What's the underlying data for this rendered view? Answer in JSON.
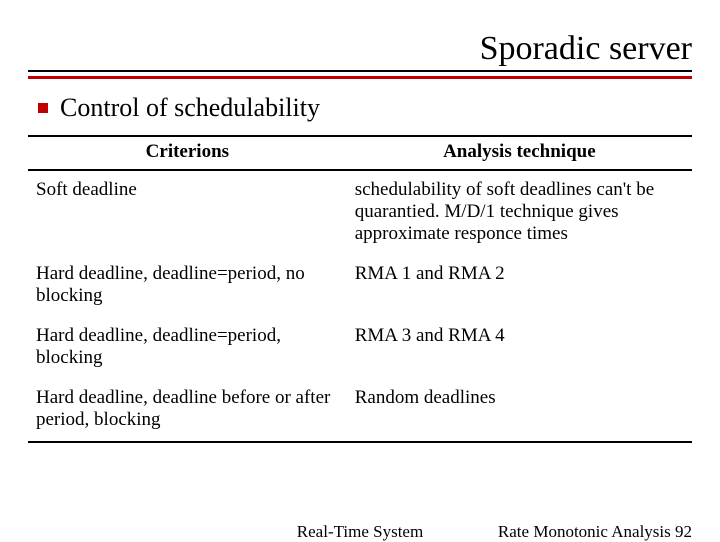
{
  "title": "Sporadic server",
  "bullet": "Control of schedulability",
  "table": {
    "headers": [
      "Criterions",
      "Analysis technique"
    ],
    "rows": [
      [
        "Soft deadline",
        "schedulability of soft deadlines can't be quarantied. M/D/1 technique gives approximate responce times"
      ],
      [
        "Hard deadline, deadline=period, no blocking",
        "RMA 1 and RMA 2"
      ],
      [
        "Hard deadline, deadline=period, blocking",
        "RMA 3 and RMA 4"
      ],
      [
        "Hard deadline, deadline before or after period, blocking",
        "Random deadlines"
      ]
    ]
  },
  "footer": {
    "center": "Real-Time System",
    "right_label": "Rate Monotonic Analysis",
    "page": "92"
  },
  "colors": {
    "accent": "#c00000",
    "text": "#000000",
    "background": "#ffffff"
  },
  "typography": {
    "title_fontsize": 34,
    "bullet_fontsize": 26,
    "table_fontsize": 19,
    "footer_fontsize": 17,
    "font_family": "Times New Roman"
  }
}
